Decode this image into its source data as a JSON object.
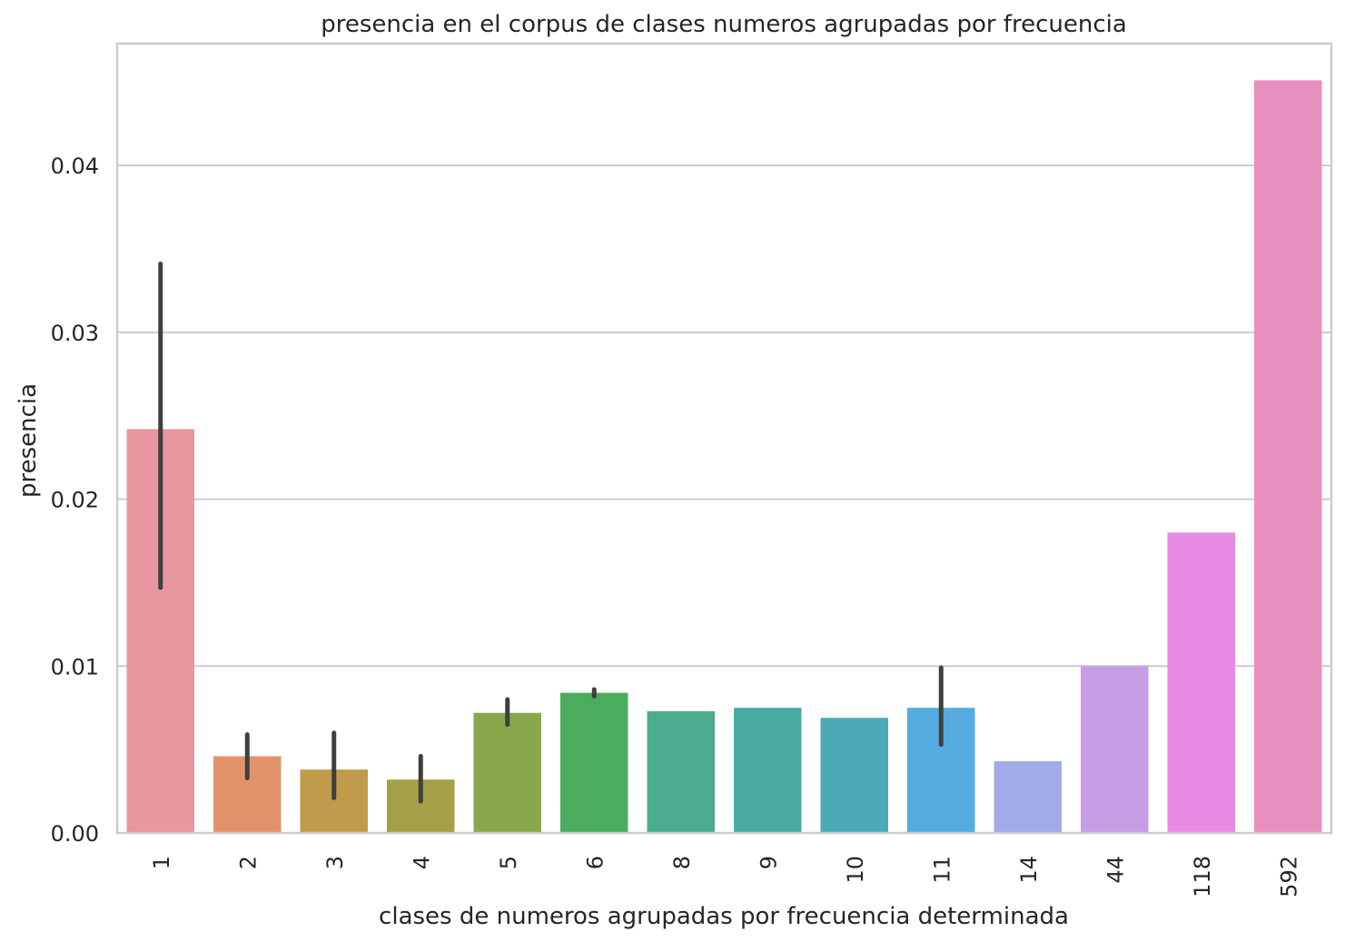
{
  "chart_data": {
    "type": "bar",
    "title": "presencia en el corpus de clases numeros agrupadas por frecuencia",
    "xlabel": "clases de numeros agrupadas por frecuencia determinada",
    "ylabel": "presencia",
    "categories": [
      "1",
      "2",
      "3",
      "4",
      "5",
      "6",
      "8",
      "9",
      "10",
      "11",
      "14",
      "44",
      "118",
      "592"
    ],
    "values": [
      0.0242,
      0.0046,
      0.0038,
      0.0032,
      0.0072,
      0.0084,
      0.0073,
      0.0075,
      0.0069,
      0.0075,
      0.0043,
      0.01,
      0.018,
      0.0451
    ],
    "error_low": [
      0.0147,
      0.0033,
      0.0021,
      0.0019,
      0.0065,
      0.0082,
      null,
      null,
      null,
      0.0053,
      null,
      null,
      null,
      null
    ],
    "error_high": [
      0.0341,
      0.0059,
      0.006,
      0.0046,
      0.008,
      0.0086,
      null,
      null,
      null,
      0.0099,
      null,
      null,
      null,
      null
    ],
    "colors": [
      "#e8969f",
      "#e3936a",
      "#c19a4b",
      "#a79f46",
      "#88a84b",
      "#4bac5d",
      "#4aab8f",
      "#4aaaa4",
      "#4ca9b8",
      "#55ace0",
      "#a2abe8",
      "#c79ee6",
      "#e88ae3",
      "#e88fbf"
    ],
    "yticks": [
      "0.00",
      "0.01",
      "0.02",
      "0.03",
      "0.04"
    ],
    "ylim": [
      0,
      0.0473
    ],
    "grid": "horizontal"
  }
}
